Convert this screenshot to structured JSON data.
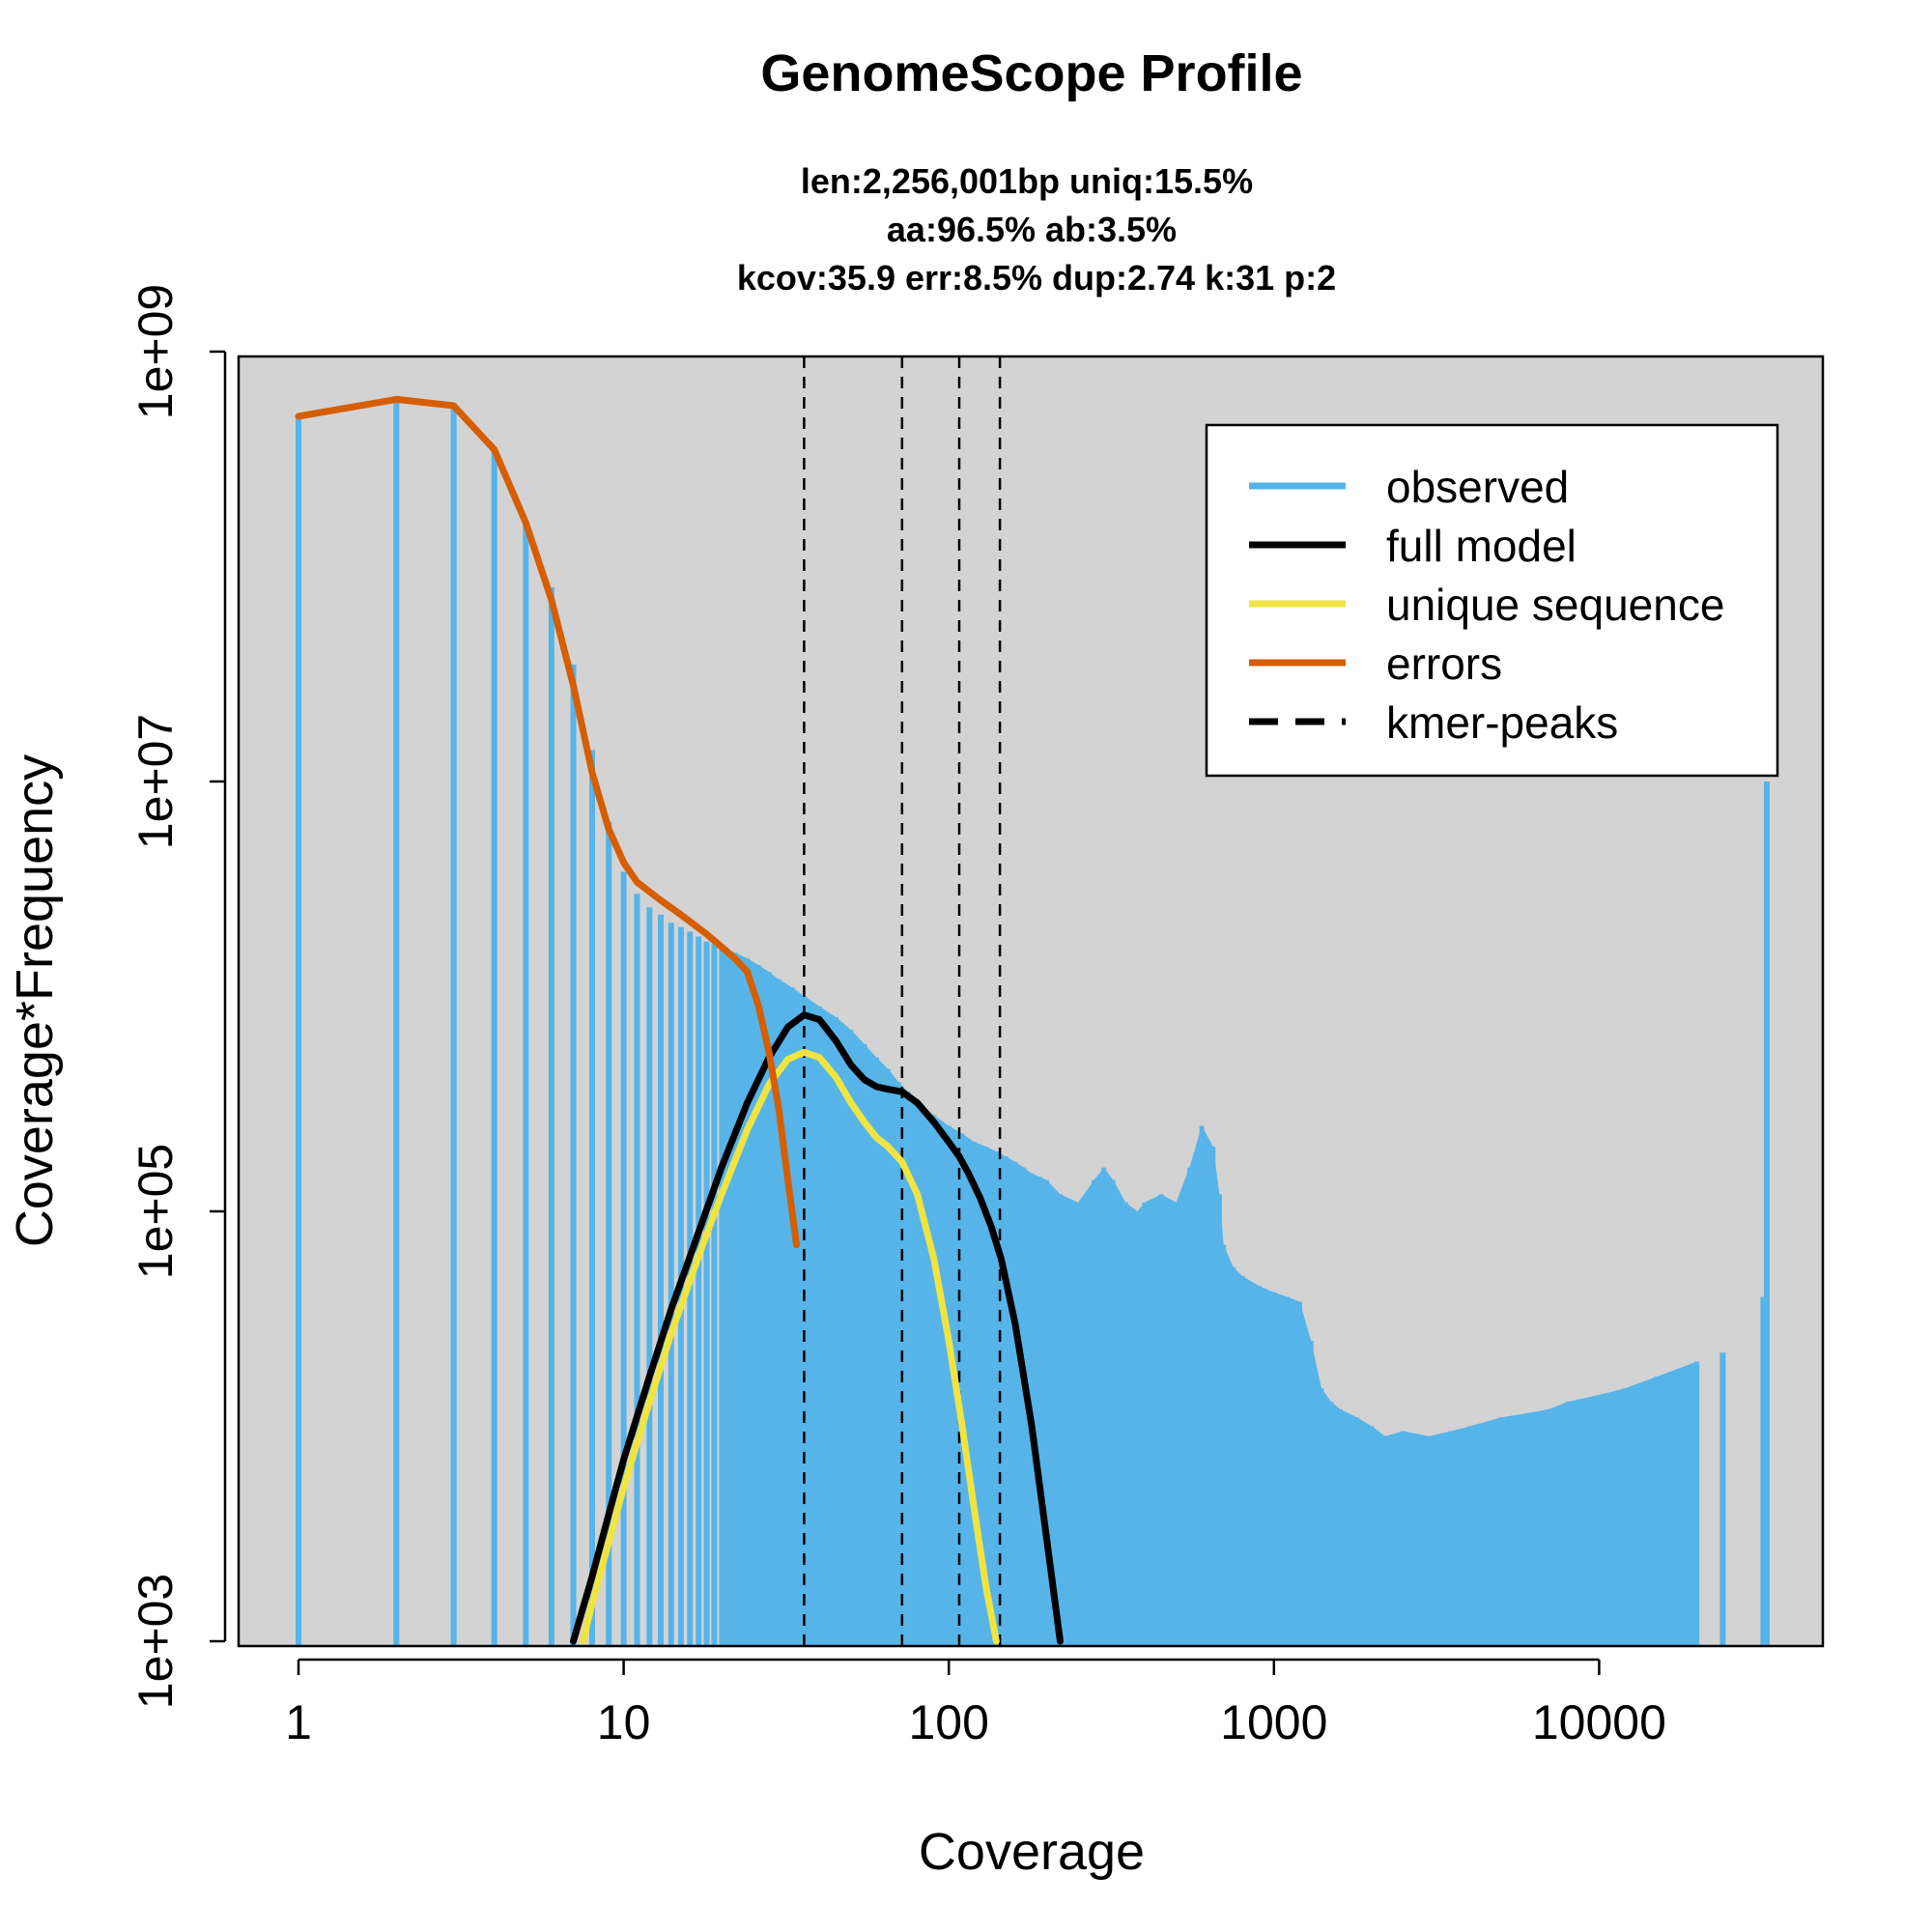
{
  "chart_data": {
    "type": "line",
    "title": "GenomeScope Profile",
    "subtitle_lines": [
      "len:2,256,001bp uniq:15.5%",
      "aa:96.5% ab:3.5%",
      "kcov:35.9 err:8.5%  dup:2.74  k:31 p:2"
    ],
    "xlabel": "Coverage",
    "ylabel": "Coverage*Frequency",
    "x_scale": "log",
    "y_scale": "log",
    "xlim": [
      0.62,
      52000
    ],
    "ylim": [
      800,
      1000000000
    ],
    "x_ticks": [
      1,
      10,
      100,
      1000,
      10000
    ],
    "x_tick_labels": [
      "1",
      "10",
      "100",
      "1000",
      "10000"
    ],
    "y_ticks": [
      1000,
      100000,
      10000000,
      1000000000
    ],
    "y_tick_labels": [
      "1e+03",
      "1e+05",
      "1e+07",
      "1e+09"
    ],
    "plot_background": "#d3d3d3",
    "legend_position": "top-right",
    "legend": [
      {
        "label": "observed",
        "color": "#56b4e9",
        "style": "solid"
      },
      {
        "label": "full model",
        "color": "#000000",
        "style": "solid"
      },
      {
        "label": "unique sequence",
        "color": "#f0e442",
        "style": "solid"
      },
      {
        "label": "errors",
        "color": "#d55e00",
        "style": "solid"
      },
      {
        "label": "kmer-peaks",
        "color": "#000000",
        "style": "dashed"
      }
    ],
    "kmer_peaks": [
      35.9,
      71.8,
      107.7,
      143.6
    ],
    "series": [
      {
        "name": "observed",
        "color": "#56b4e9",
        "kind": "bars",
        "x": [
          1,
          2,
          3,
          4,
          5,
          6,
          7,
          8,
          9,
          10,
          11,
          12,
          13,
          14,
          15,
          16,
          17,
          18,
          19,
          20,
          22,
          24,
          26,
          28,
          30,
          33,
          36,
          40,
          45,
          50,
          55,
          60,
          65,
          70,
          75,
          80,
          90,
          100,
          110,
          120,
          130,
          140,
          150,
          160,
          170,
          180,
          190,
          200,
          220,
          250,
          280,
          300,
          320,
          350,
          380,
          400,
          450,
          500,
          550,
          600,
          650,
          680,
          700,
          750,
          800,
          900,
          1000,
          1100,
          1200,
          1300,
          1400,
          1500,
          1600,
          1800,
          2000,
          2200,
          2500,
          3000,
          3500,
          4000,
          5000,
          6000,
          7000,
          8000,
          10000,
          12000,
          15000,
          20000,
          24000,
          32000,
          32800
        ],
        "y": [
          500000000,
          600000000,
          560000000,
          350000000,
          160000000,
          80000000,
          35000000,
          14000000,
          6500000,
          3800000,
          3000000,
          2600000,
          2400000,
          2200000,
          2100000,
          2000000,
          1900000,
          1800000,
          1750000,
          1700000,
          1600000,
          1500000,
          1400000,
          1300000,
          1200000,
          1100000,
          1000000,
          900000,
          800000,
          700000,
          600000,
          520000,
          460000,
          400000,
          360000,
          320000,
          280000,
          250000,
          230000,
          210000,
          200000,
          190000,
          180000,
          170000,
          160000,
          150000,
          145000,
          140000,
          120000,
          110000,
          140000,
          160000,
          140000,
          110000,
          100000,
          110000,
          120000,
          110000,
          160000,
          250000,
          200000,
          120000,
          70000,
          55000,
          50000,
          45000,
          42000,
          40000,
          38000,
          25000,
          15000,
          13000,
          12000,
          11000,
          10000,
          9000,
          9500,
          9000,
          9500,
          10000,
          11000,
          11500,
          12000,
          13000,
          14000,
          15000,
          17000,
          20000,
          22000,
          40000,
          10000000
        ]
      },
      {
        "name": "full model",
        "color": "#000000",
        "kind": "line",
        "x": [
          7,
          8,
          9,
          10,
          12,
          14,
          17,
          20,
          24,
          28,
          32,
          35.9,
          40,
          45,
          50,
          55,
          60,
          65,
          71.8,
          80,
          90,
          100,
          107.7,
          115,
          125,
          135,
          145,
          160,
          180,
          200,
          220
        ],
        "y": [
          1000,
          2000,
          3900,
          7000,
          17000,
          35000,
          80000,
          160000,
          320000,
          520000,
          720000,
          820000,
          780000,
          620000,
          480000,
          410000,
          380000,
          370000,
          360000,
          320000,
          260000,
          210000,
          180000,
          150000,
          115000,
          85000,
          60000,
          30000,
          10000,
          3000,
          1000
        ]
      },
      {
        "name": "unique sequence",
        "color": "#f0e442",
        "kind": "line",
        "x": [
          7.5,
          8,
          9,
          10,
          12,
          14,
          17,
          20,
          24,
          28,
          32,
          35.9,
          40,
          45,
          50,
          55,
          60,
          65,
          71.8,
          80,
          90,
          100,
          110,
          120,
          130,
          140
        ],
        "y": [
          1000,
          1500,
          2900,
          5200,
          13000,
          27000,
          62000,
          120000,
          240000,
          390000,
          510000,
          550000,
          520000,
          420000,
          320000,
          260000,
          220000,
          200000,
          170000,
          120000,
          60000,
          25000,
          10000,
          4000,
          1800,
          1000
        ]
      },
      {
        "name": "errors",
        "color": "#d55e00",
        "kind": "line",
        "x": [
          1,
          2,
          3,
          4,
          5,
          6,
          7,
          8,
          9,
          10,
          11,
          13,
          15,
          18,
          20,
          22,
          24,
          26,
          28,
          30,
          32,
          34
        ],
        "y": [
          500000000,
          600000000,
          560000000,
          350000000,
          160000000,
          70000000,
          28000000,
          11000000,
          6000000,
          4200000,
          3400000,
          2800000,
          2400000,
          1950000,
          1700000,
          1500000,
          1300000,
          900000,
          550000,
          300000,
          140000,
          70000
        ]
      }
    ]
  }
}
